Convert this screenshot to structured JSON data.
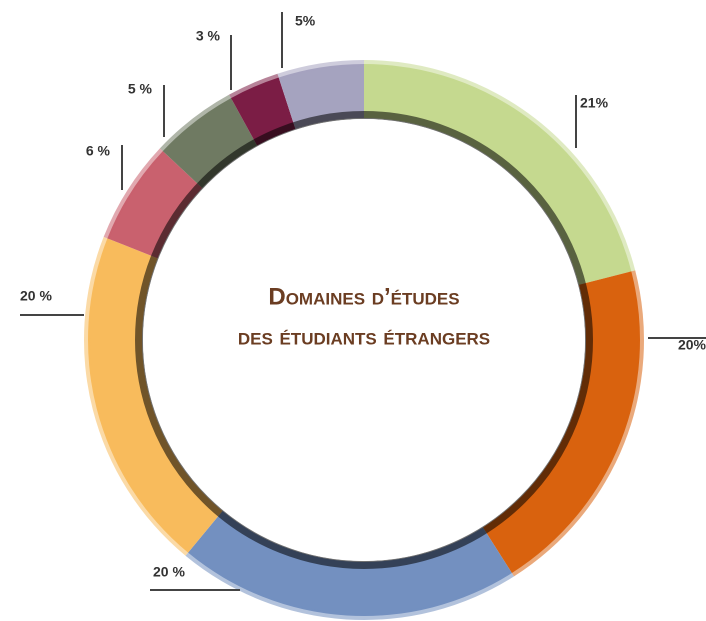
{
  "chart_data": {
    "type": "donut",
    "title": [
      "Domaines d’études",
      "des étudiants étrangers"
    ],
    "values": [
      21,
      20,
      20,
      20,
      6,
      5,
      3,
      5
    ],
    "value_labels": [
      "21%",
      "20%",
      "20 %",
      "20 %",
      "6 %",
      "5 %",
      "3 %",
      "5%"
    ],
    "colors": [
      "#c5d98f",
      "#d9620e",
      "#7390c0",
      "#f8bb5c",
      "#c9616e",
      "#6f7a62",
      "#7b1d45",
      "#a5a3bf"
    ]
  }
}
